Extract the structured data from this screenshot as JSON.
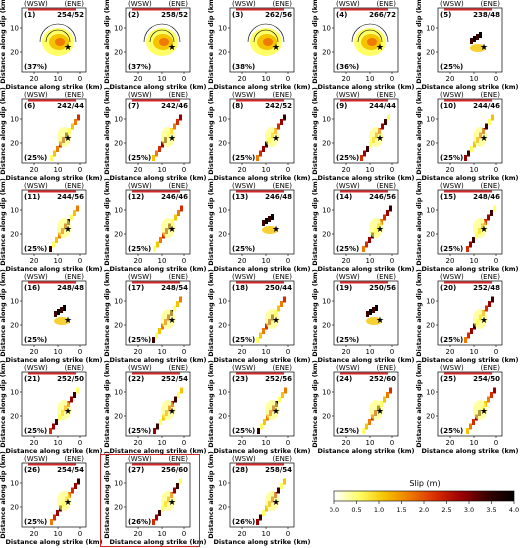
{
  "figure": {
    "wsw_label": "(WSW)",
    "ene_label": "(ENE)",
    "ylabel": "Distance along dip (km)",
    "xlabel": "Distance along strike (km)",
    "x_ticks": [
      "20",
      "10",
      "0"
    ],
    "y_ticks": [
      "10",
      "20"
    ],
    "highlight_panel": "27"
  },
  "panels": [
    {
      "id": "(1)",
      "strike_dip": "254/52",
      "pct": "(37%)"
    },
    {
      "id": "(2)",
      "strike_dip": "258/52",
      "pct": "(37%)"
    },
    {
      "id": "(3)",
      "strike_dip": "262/56",
      "pct": "(38%)"
    },
    {
      "id": "(4)",
      "strike_dip": "266/72",
      "pct": "(36%)"
    },
    {
      "id": "(5)",
      "strike_dip": "238/48",
      "pct": "(25%)"
    },
    {
      "id": "(6)",
      "strike_dip": "242/44",
      "pct": "(25%)"
    },
    {
      "id": "(7)",
      "strike_dip": "242/46",
      "pct": "(25%)"
    },
    {
      "id": "(8)",
      "strike_dip": "242/52",
      "pct": "(25%)"
    },
    {
      "id": "(9)",
      "strike_dip": "244/44",
      "pct": "(25%)"
    },
    {
      "id": "(10)",
      "strike_dip": "244/46",
      "pct": "(25%)"
    },
    {
      "id": "(11)",
      "strike_dip": "244/56",
      "pct": "(25%)"
    },
    {
      "id": "(12)",
      "strike_dip": "246/46",
      "pct": "(25%)"
    },
    {
      "id": "(13)",
      "strike_dip": "246/48",
      "pct": "(25%)"
    },
    {
      "id": "(14)",
      "strike_dip": "246/56",
      "pct": "(25%)"
    },
    {
      "id": "(15)",
      "strike_dip": "248/46",
      "pct": "(25%)"
    },
    {
      "id": "(16)",
      "strike_dip": "248/48",
      "pct": "(25%)"
    },
    {
      "id": "(17)",
      "strike_dip": "248/54",
      "pct": "(25%)"
    },
    {
      "id": "(18)",
      "strike_dip": "250/44",
      "pct": "(25%)"
    },
    {
      "id": "(19)",
      "strike_dip": "250/56",
      "pct": "(25%)"
    },
    {
      "id": "(20)",
      "strike_dip": "252/48",
      "pct": "(25%)"
    },
    {
      "id": "(21)",
      "strike_dip": "252/50",
      "pct": "(25%)"
    },
    {
      "id": "(22)",
      "strike_dip": "252/54",
      "pct": "(25%)"
    },
    {
      "id": "(23)",
      "strike_dip": "252/56",
      "pct": "(25%)"
    },
    {
      "id": "(24)",
      "strike_dip": "252/60",
      "pct": "(25%)"
    },
    {
      "id": "(25)",
      "strike_dip": "254/50",
      "pct": "(25%)"
    },
    {
      "id": "(26)",
      "strike_dip": "254/54",
      "pct": "(25%)"
    },
    {
      "id": "(27)",
      "strike_dip": "256/60",
      "pct": "(26%)"
    },
    {
      "id": "(28)",
      "strike_dip": "258/54",
      "pct": "(26%)"
    }
  ],
  "colorbar": {
    "label": "Slip (m)",
    "ticks": [
      "0.0",
      "0.5",
      "1.0",
      "1.5",
      "2.0",
      "2.5",
      "3.0",
      "3.5",
      "4.0"
    ],
    "range": [
      0,
      4
    ],
    "colors": [
      "#ffffff",
      "#ffff66",
      "#f5c400",
      "#ee7a00",
      "#d62a00",
      "#9a0000",
      "#3a0000",
      "#000000"
    ]
  },
  "chart_data": {
    "type": "heatmap",
    "panel_count": 28,
    "x_range_km": [
      25,
      -3
    ],
    "y_range_km": [
      0,
      30
    ],
    "value": "slip (m)"
  }
}
